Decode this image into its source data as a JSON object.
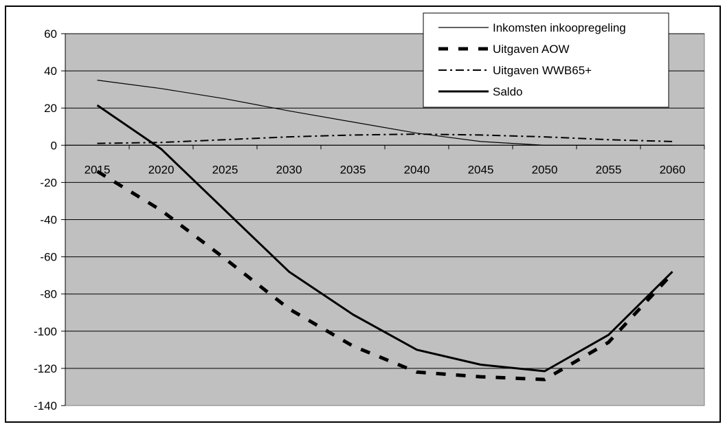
{
  "chart_data": {
    "type": "line",
    "title": "",
    "xlabel": "",
    "ylabel": "",
    "x": [
      2015,
      2020,
      2025,
      2030,
      2035,
      2040,
      2045,
      2050,
      2055,
      2060
    ],
    "x_tick_labels": [
      "2015",
      "2020",
      "2025",
      "2030",
      "2035",
      "2040",
      "2045",
      "2050",
      "2055",
      "2060"
    ],
    "ylim": [
      -140,
      60
    ],
    "y_ticks": [
      60,
      40,
      20,
      0,
      -20,
      -40,
      -60,
      -80,
      -100,
      -120,
      -140
    ],
    "y_tick_labels": [
      "60",
      "40",
      "20",
      "0",
      "-20",
      "-40",
      "-60",
      "-80",
      "-100",
      "-120",
      "-140"
    ],
    "grid": "horizontal",
    "legend_position": "top-right",
    "plot_background": "#c0c0c0",
    "series": [
      {
        "name": "Inkomsten inkoopregeling",
        "style": "thin-solid",
        "values": [
          35,
          30.5,
          25,
          18.5,
          12.5,
          6.5,
          2,
          0,
          0,
          0
        ]
      },
      {
        "name": "Uitgaven AOW",
        "style": "thick-dashed",
        "values": [
          -14,
          -35,
          -61,
          -88,
          -108,
          -122,
          -124.5,
          -126,
          -106,
          -69
        ]
      },
      {
        "name": "Uitgaven WWB65+",
        "style": "dash-dot",
        "values": [
          1,
          1.5,
          3,
          4.5,
          5.5,
          6,
          5.5,
          4.5,
          3,
          2
        ]
      },
      {
        "name": "Saldo",
        "style": "thick-solid",
        "values": [
          21.5,
          -2,
          -35,
          -68,
          -91,
          -110,
          -118,
          -121.5,
          -102,
          -68
        ]
      }
    ]
  }
}
